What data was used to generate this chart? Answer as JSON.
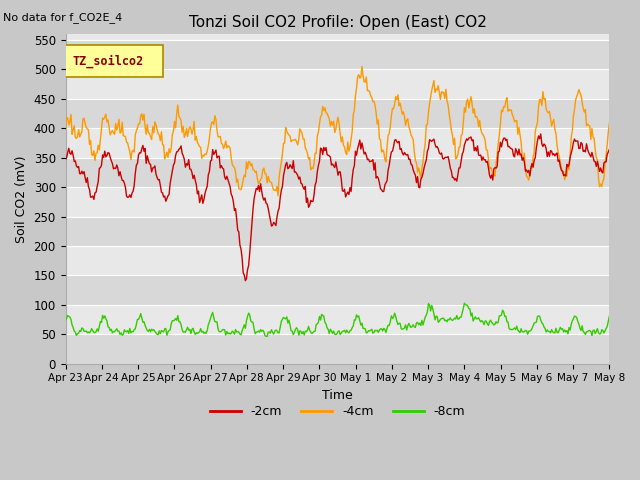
{
  "title": "Tonzi Soil CO2 Profile: Open (East) CO2",
  "subtitle": "No data for f_CO2E_4",
  "ylabel": "Soil CO2 (mV)",
  "xlabel": "Time",
  "ylim": [
    0,
    560
  ],
  "yticks": [
    0,
    50,
    100,
    150,
    200,
    250,
    300,
    350,
    400,
    450,
    500,
    550
  ],
  "legend_label": "TZ_soilco2",
  "series_labels": [
    "-2cm",
    "-4cm",
    "-8cm"
  ],
  "series_colors": [
    "#cc0000",
    "#ff9900",
    "#33cc00"
  ],
  "fig_bg_color": "#c8c8c8",
  "plot_bg_color": "#e8e8e8",
  "grid_color": "#ffffff",
  "band_color": "#d8d8d8",
  "n_points": 500,
  "x_end_day": 15,
  "xtick_labels": [
    "Apr 23",
    "Apr 24",
    "Apr 25",
    "Apr 26",
    "Apr 27",
    "Apr 28",
    "Apr 29",
    "Apr 30",
    "May 1",
    "May 2",
    "May 3",
    "May 4",
    "May 5",
    "May 6",
    "May 7",
    "May 8"
  ],
  "xtick_positions": [
    0,
    1,
    2,
    3,
    4,
    5,
    6,
    7,
    8,
    9,
    10,
    11,
    12,
    13,
    14,
    15
  ]
}
